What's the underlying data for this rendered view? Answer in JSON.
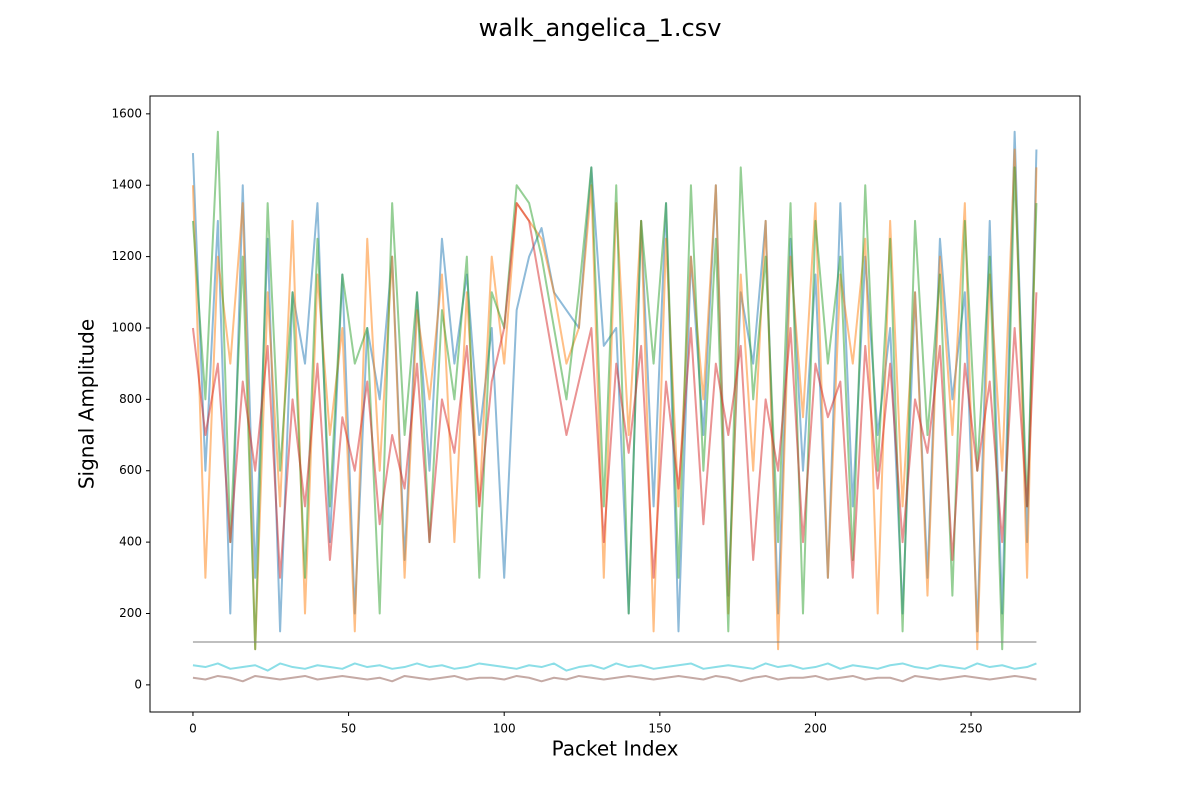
{
  "chart_data": {
    "type": "line",
    "title": "walk_angelica_1.csv",
    "x_label": "Packet Index",
    "y_label": "Signal Amplitude",
    "x": [
      0,
      4,
      8,
      12,
      16,
      20,
      24,
      28,
      32,
      36,
      40,
      44,
      48,
      52,
      56,
      60,
      64,
      68,
      72,
      76,
      80,
      84,
      88,
      92,
      96,
      100,
      104,
      108,
      112,
      116,
      120,
      124,
      128,
      132,
      136,
      140,
      144,
      148,
      152,
      156,
      160,
      164,
      168,
      172,
      176,
      180,
      184,
      188,
      192,
      196,
      200,
      204,
      208,
      212,
      216,
      220,
      224,
      228,
      232,
      236,
      240,
      244,
      248,
      252,
      256,
      260,
      264,
      268,
      271
    ],
    "xlim": [
      -13.8,
      285
    ],
    "xticks": [
      0,
      50,
      100,
      150,
      200,
      250
    ],
    "ylim": [
      -76,
      1650
    ],
    "yticks": [
      0,
      200,
      400,
      600,
      800,
      1000,
      1200,
      1400,
      1600
    ],
    "grid": false,
    "series": [
      {
        "color": "#1f77b4",
        "values": [
          1490,
          600,
          1300,
          200,
          1400,
          300,
          1250,
          150,
          1100,
          900,
          1350,
          400,
          1150,
          200,
          1000,
          800,
          1200,
          350,
          1100,
          600,
          1250,
          900,
          1150,
          700,
          1000,
          300,
          1050,
          1200,
          1280,
          1100,
          1050,
          1000,
          1450,
          950,
          1000,
          200,
          1300,
          500,
          1350,
          150,
          1200,
          700,
          1400,
          250,
          1100,
          900,
          1300,
          200,
          1250,
          600,
          1150,
          300,
          1350,
          500,
          1200,
          700,
          1000,
          200,
          1100,
          300,
          1250,
          800,
          1100,
          150,
          1300,
          200,
          1550,
          400,
          1500
        ]
      },
      {
        "color": "#ff7f0e",
        "values": [
          1400,
          300,
          1200,
          900,
          1350,
          100,
          1100,
          500,
          1300,
          200,
          1150,
          700,
          1000,
          150,
          1250,
          600,
          1200,
          300,
          1050,
          800,
          1150,
          400,
          1100,
          500,
          1200,
          900,
          1350,
          1300,
          1250,
          1100,
          900,
          1000,
          1400,
          300,
          1350,
          700,
          1300,
          150,
          1250,
          500,
          1200,
          800,
          1400,
          200,
          1150,
          600,
          1300,
          100,
          1200,
          750,
          1350,
          300,
          1150,
          900,
          1250,
          200,
          1300,
          500,
          1100,
          250,
          1200,
          700,
          1350,
          100,
          1150,
          600,
          1500,
          300,
          1450
        ]
      },
      {
        "color": "#2ca02c",
        "values": [
          1300,
          800,
          1550,
          400,
          1200,
          100,
          1350,
          600,
          1100,
          300,
          1250,
          500,
          1150,
          900,
          1000,
          200,
          1350,
          700,
          1100,
          400,
          1050,
          800,
          1200,
          300,
          1100,
          1000,
          1400,
          1350,
          1200,
          1000,
          800,
          1100,
          1450,
          500,
          1400,
          200,
          1300,
          900,
          1350,
          300,
          1400,
          600,
          1250,
          150,
          1450,
          800,
          1200,
          400,
          1350,
          200,
          1300,
          900,
          1200,
          350,
          1400,
          600,
          1250,
          150,
          1300,
          700,
          1150,
          250,
          1300,
          600,
          1200,
          100,
          1450,
          500,
          1350
        ]
      },
      {
        "color": "#d62728",
        "values": [
          1000,
          700,
          900,
          400,
          850,
          600,
          950,
          300,
          800,
          500,
          900,
          350,
          750,
          600,
          850,
          450,
          700,
          550,
          900,
          400,
          800,
          650,
          950,
          500,
          850,
          1000,
          1350,
          1300,
          1100,
          900,
          700,
          850,
          1000,
          400,
          900,
          650,
          950,
          300,
          850,
          550,
          1000,
          450,
          900,
          700,
          950,
          350,
          800,
          600,
          1000,
          400,
          900,
          750,
          850,
          300,
          950,
          550,
          900,
          400,
          800,
          650,
          950,
          350,
          900,
          600,
          850,
          400,
          1000,
          500,
          1100
        ]
      },
      {
        "color": "#7f7f7f",
        "values": [
          120,
          120,
          120,
          120,
          120,
          120,
          120,
          120,
          120,
          120,
          120,
          120,
          120,
          120,
          120,
          120,
          120,
          120,
          120,
          120,
          120,
          120,
          120,
          120,
          120,
          120,
          120,
          120,
          120,
          120,
          120,
          120,
          120,
          120,
          120,
          120,
          120,
          120,
          120,
          120,
          120,
          120,
          120,
          120,
          120,
          120,
          120,
          120,
          120,
          120,
          120,
          120,
          120,
          120,
          120,
          120,
          120,
          120,
          120,
          120,
          120,
          120,
          120,
          120,
          120,
          120,
          120,
          120,
          120
        ]
      },
      {
        "color": "#17becf",
        "values": [
          55,
          50,
          60,
          45,
          50,
          55,
          40,
          60,
          50,
          45,
          55,
          50,
          45,
          60,
          50,
          55,
          45,
          50,
          60,
          50,
          55,
          45,
          50,
          60,
          55,
          50,
          45,
          55,
          50,
          60,
          40,
          50,
          55,
          45,
          60,
          50,
          55,
          45,
          50,
          55,
          60,
          45,
          50,
          55,
          50,
          45,
          60,
          50,
          55,
          45,
          50,
          60,
          45,
          55,
          50,
          45,
          55,
          60,
          50,
          45,
          55,
          50,
          45,
          60,
          50,
          55,
          45,
          50,
          60
        ]
      },
      {
        "color": "#8c564b",
        "values": [
          20,
          15,
          25,
          20,
          10,
          25,
          20,
          15,
          20,
          25,
          15,
          20,
          25,
          20,
          15,
          20,
          10,
          25,
          20,
          15,
          20,
          25,
          15,
          20,
          20,
          15,
          25,
          20,
          10,
          20,
          15,
          25,
          20,
          15,
          20,
          25,
          20,
          15,
          20,
          25,
          20,
          15,
          25,
          20,
          10,
          20,
          25,
          15,
          20,
          20,
          25,
          15,
          20,
          25,
          15,
          20,
          20,
          10,
          25,
          20,
          15,
          20,
          25,
          20,
          15,
          20,
          25,
          20,
          15
        ]
      }
    ]
  }
}
